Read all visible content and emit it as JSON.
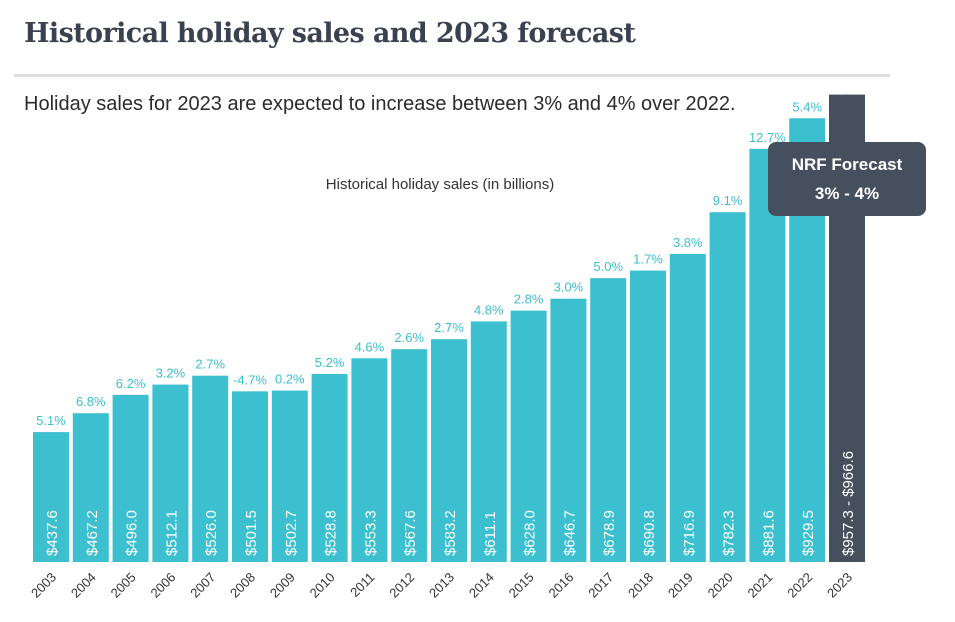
{
  "header": {
    "title": "Historical holiday sales and 2023 forecast",
    "subtitle": "Holiday sales for 2023 are expected to increase between 3% and 4% over 2022."
  },
  "chart_data": {
    "type": "bar",
    "title": "Historical holiday sales (in billions)",
    "categories": [
      "2003",
      "2004",
      "2005",
      "2006",
      "2007",
      "2008",
      "2009",
      "2010",
      "2011",
      "2012",
      "2013",
      "2014",
      "2015",
      "2016",
      "2017",
      "2018",
      "2019",
      "2020",
      "2021",
      "2022",
      "2023"
    ],
    "values": [
      437.6,
      467.2,
      496.0,
      512.1,
      526.0,
      501.5,
      502.7,
      528.8,
      553.3,
      567.6,
      583.2,
      611.1,
      628.0,
      646.7,
      678.9,
      690.8,
      716.9,
      782.3,
      881.6,
      929.5,
      966.6
    ],
    "value_labels": [
      "$437.6",
      "$467.2",
      "$496.0",
      "$512.1",
      "$526.0",
      "$501.5",
      "$502.7",
      "$528.8",
      "$553.3",
      "$567.6",
      "$583.2",
      "$611.1",
      "$628.0",
      "$646.7",
      "$678.9",
      "$690.8",
      "$716.9",
      "$782.3",
      "$881.6",
      "$929.5",
      "$957.3 - $966.6"
    ],
    "growth_labels": [
      "5.1%",
      "6.8%",
      "6.2%",
      "3.2%",
      "2.7%",
      "-4.7%",
      "0.2%",
      "5.2%",
      "4.6%",
      "2.6%",
      "2.7%",
      "4.8%",
      "2.8%",
      "3.0%",
      "5.0%",
      "1.7%",
      "3.8%",
      "9.1%",
      "12.7%",
      "5.4%",
      ""
    ],
    "forecast_range": [
      957.3,
      966.6
    ],
    "forecast_callout": {
      "title": "NRF Forecast",
      "value": "3% - 4%"
    },
    "colors": {
      "historical": "#3cbfcf",
      "forecast": "#464f5d",
      "growth_text": "#3cbfcf",
      "year_text": "#333333"
    },
    "grid": false,
    "legend": "none"
  }
}
